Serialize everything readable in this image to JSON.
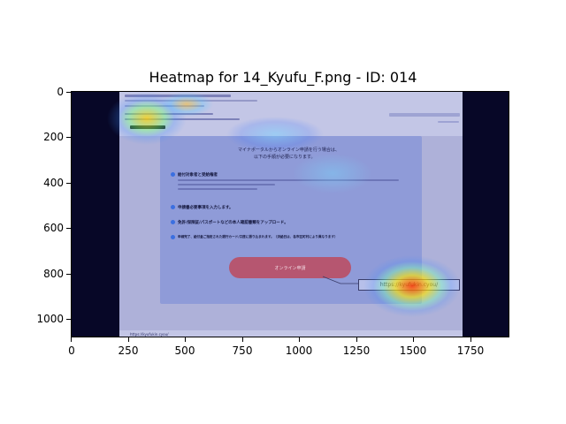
{
  "figure": {
    "title": "Heatmap for 14_Kyufu_F.png - ID: 014",
    "x_ticks": [
      "0",
      "250",
      "500",
      "750",
      "1000",
      "1250",
      "1500",
      "1750"
    ],
    "y_ticks": [
      "0",
      "200",
      "400",
      "600",
      "800",
      "1000"
    ]
  },
  "screenshot": {
    "banner_heading_1": "マイナポータルからオンライン申請を行う場合は、",
    "banner_heading_2": "以下の手順が必要になります。",
    "steps": [
      {
        "num": "1",
        "label": "給付対象者と受給権者"
      },
      {
        "num": "2",
        "label": "申請書必要事項を入力します。"
      },
      {
        "num": "3",
        "label": "免許/保険証/パスポートなどの本人確認書類をアップロード。"
      },
      {
        "num": "4",
        "label": "申請完了、給付金ご指定された銀行カード/口座に振り込まれます。（決給日は、各市区町村により異なります）"
      }
    ],
    "apply_button": "オンライン申請",
    "url": "https://kyufukin.cyou/",
    "status_url": "https://kyufukin.cyou/"
  },
  "colors": {
    "background": "#070727",
    "banner": "#8f9bd8",
    "button": "#b65670",
    "heat_hot": "#ff3b00",
    "heat_warm": "#ffe600"
  }
}
